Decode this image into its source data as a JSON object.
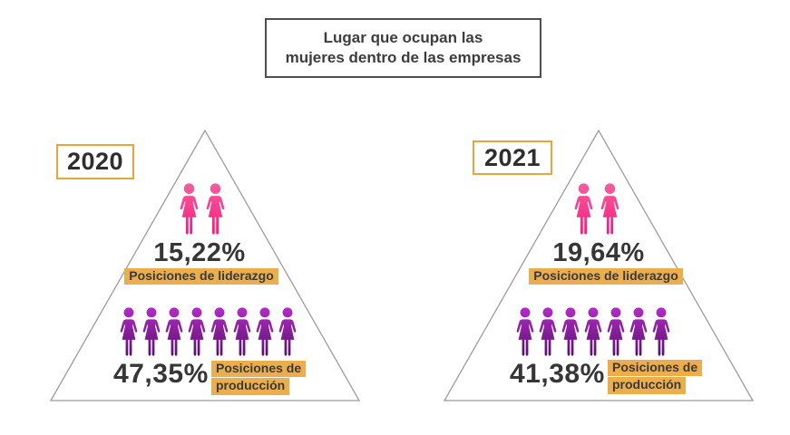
{
  "title": {
    "line1": "Lugar que ocupan las",
    "line2": "mujeres dentro de las empresas"
  },
  "labels": {
    "production_line1": "Posiciones de",
    "production_line2": "producción"
  },
  "colors": {
    "highlight": "#ecae4d",
    "year_border": "#e9a43c",
    "triangle_stroke": "#9c9c9c",
    "pink_top": "#f2609e",
    "pink_bottom": "#fa177c",
    "purple_top": "#b32cc7",
    "purple_bottom": "#551069",
    "text": "#3d3d3d"
  },
  "chart_data": {
    "type": "pictograph",
    "title": "Lugar que ocupan las mujeres dentro de las empresas",
    "legend_position": "none",
    "groups": [
      {
        "year": "2020",
        "levels": [
          {
            "label": "Posiciones de liderazgo",
            "value": 15.22,
            "value_label": "15,22%",
            "icon_count": 2,
            "icon_color": "pink"
          },
          {
            "label": "Posiciones de producción",
            "value": 47.35,
            "value_label": "47,35%",
            "icon_count": 8,
            "icon_color": "purple"
          }
        ]
      },
      {
        "year": "2021",
        "levels": [
          {
            "label": "Posiciones de liderazgo",
            "value": 19.64,
            "value_label": "19,64%",
            "icon_count": 2,
            "icon_color": "pink"
          },
          {
            "label": "Posiciones de producción",
            "value": 41.38,
            "value_label": "41,38%",
            "icon_count": 7,
            "icon_color": "purple"
          }
        ]
      }
    ]
  }
}
